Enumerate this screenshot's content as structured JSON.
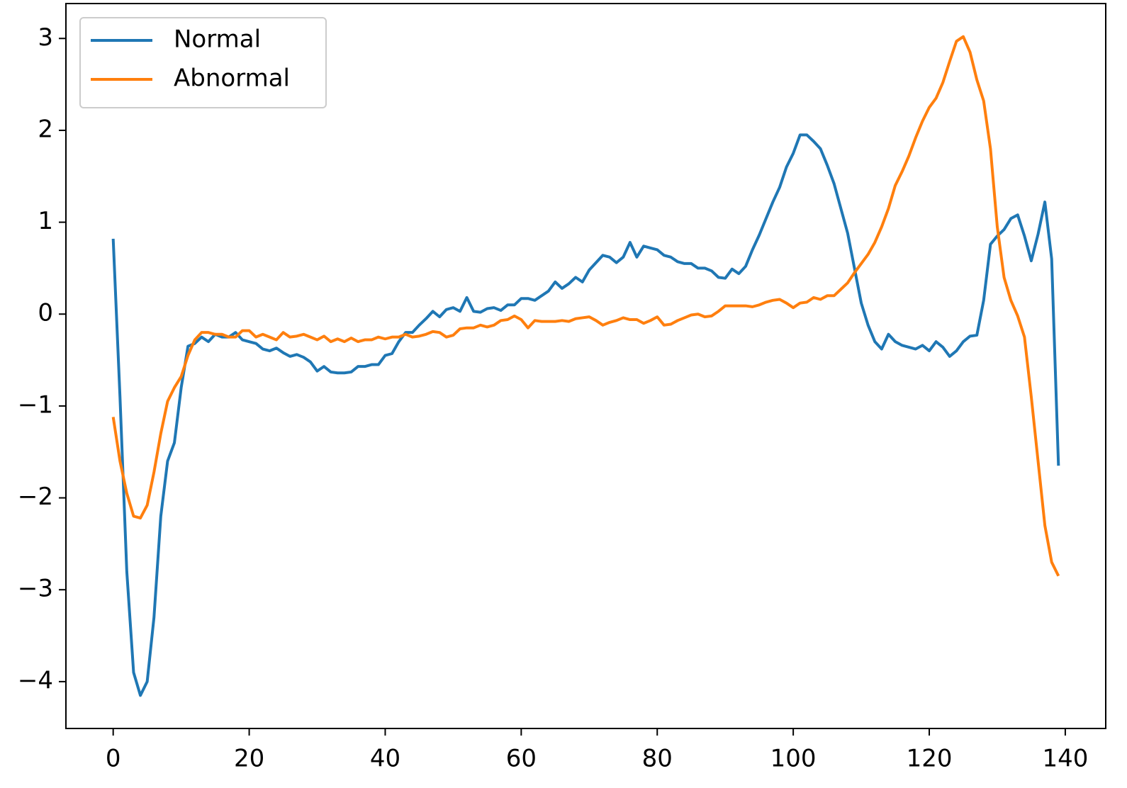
{
  "chart_data": {
    "type": "line",
    "x": [
      0,
      1,
      2,
      3,
      4,
      5,
      6,
      7,
      8,
      9,
      10,
      11,
      12,
      13,
      14,
      15,
      16,
      17,
      18,
      19,
      20,
      21,
      22,
      23,
      24,
      25,
      26,
      27,
      28,
      29,
      30,
      31,
      32,
      33,
      34,
      35,
      36,
      37,
      38,
      39,
      40,
      41,
      42,
      43,
      44,
      45,
      46,
      47,
      48,
      49,
      50,
      51,
      52,
      53,
      54,
      55,
      56,
      57,
      58,
      59,
      60,
      61,
      62,
      63,
      64,
      65,
      66,
      67,
      68,
      69,
      70,
      71,
      72,
      73,
      74,
      75,
      76,
      77,
      78,
      79,
      80,
      81,
      82,
      83,
      84,
      85,
      86,
      87,
      88,
      89,
      90,
      91,
      92,
      93,
      94,
      95,
      96,
      97,
      98,
      99,
      100,
      101,
      102,
      103,
      104,
      105,
      106,
      107,
      108,
      109,
      110,
      111,
      112,
      113,
      114,
      115,
      116,
      117,
      118,
      119,
      120,
      121,
      122,
      123,
      124,
      125,
      126,
      127,
      128,
      129,
      130,
      131,
      132,
      133,
      134,
      135,
      136,
      137,
      138,
      139
    ],
    "series": [
      {
        "name": "Normal",
        "color": "#1f77b4",
        "values": [
          0.82,
          -0.9,
          -2.8,
          -3.9,
          -4.15,
          -4.0,
          -3.3,
          -2.2,
          -1.6,
          -1.4,
          -0.8,
          -0.35,
          -0.32,
          -0.25,
          -0.3,
          -0.22,
          -0.25,
          -0.25,
          -0.2,
          -0.28,
          -0.3,
          -0.32,
          -0.38,
          -0.4,
          -0.37,
          -0.42,
          -0.46,
          -0.44,
          -0.47,
          -0.52,
          -0.62,
          -0.57,
          -0.63,
          -0.64,
          -0.64,
          -0.63,
          -0.57,
          -0.57,
          -0.55,
          -0.55,
          -0.45,
          -0.43,
          -0.3,
          -0.2,
          -0.2,
          -0.12,
          -0.05,
          0.03,
          -0.03,
          0.05,
          0.07,
          0.03,
          0.18,
          0.03,
          0.02,
          0.06,
          0.07,
          0.04,
          0.1,
          0.1,
          0.17,
          0.17,
          0.15,
          0.2,
          0.25,
          0.35,
          0.28,
          0.33,
          0.4,
          0.35,
          0.48,
          0.56,
          0.64,
          0.62,
          0.56,
          0.62,
          0.78,
          0.62,
          0.74,
          0.72,
          0.7,
          0.64,
          0.62,
          0.57,
          0.55,
          0.55,
          0.5,
          0.5,
          0.47,
          0.4,
          0.39,
          0.49,
          0.44,
          0.52,
          0.7,
          0.86,
          1.04,
          1.22,
          1.38,
          1.6,
          1.75,
          1.95,
          1.95,
          1.88,
          1.8,
          1.62,
          1.42,
          1.15,
          0.88,
          0.5,
          0.12,
          -0.12,
          -0.3,
          -0.38,
          -0.22,
          -0.3,
          -0.34,
          -0.36,
          -0.38,
          -0.34,
          -0.4,
          -0.3,
          -0.36,
          -0.46,
          -0.4,
          -0.3,
          -0.24,
          -0.23,
          0.15,
          0.76,
          0.85,
          0.92,
          1.04,
          1.08,
          0.85,
          0.58,
          0.87,
          1.22,
          0.6,
          -1.65
        ]
      },
      {
        "name": "Abnormal",
        "color": "#ff7f0e",
        "values": [
          -1.12,
          -1.6,
          -1.95,
          -2.2,
          -2.22,
          -2.08,
          -1.72,
          -1.3,
          -0.95,
          -0.8,
          -0.68,
          -0.45,
          -0.28,
          -0.2,
          -0.2,
          -0.22,
          -0.22,
          -0.25,
          -0.25,
          -0.18,
          -0.18,
          -0.25,
          -0.22,
          -0.25,
          -0.28,
          -0.2,
          -0.25,
          -0.24,
          -0.22,
          -0.25,
          -0.28,
          -0.24,
          -0.3,
          -0.27,
          -0.3,
          -0.26,
          -0.3,
          -0.28,
          -0.28,
          -0.25,
          -0.27,
          -0.25,
          -0.25,
          -0.22,
          -0.25,
          -0.24,
          -0.22,
          -0.19,
          -0.2,
          -0.25,
          -0.23,
          -0.16,
          -0.15,
          -0.15,
          -0.12,
          -0.14,
          -0.12,
          -0.07,
          -0.06,
          -0.02,
          -0.06,
          -0.15,
          -0.07,
          -0.08,
          -0.08,
          -0.08,
          -0.07,
          -0.08,
          -0.05,
          -0.04,
          -0.03,
          -0.07,
          -0.12,
          -0.09,
          -0.07,
          -0.04,
          -0.06,
          -0.06,
          -0.1,
          -0.07,
          -0.03,
          -0.12,
          -0.11,
          -0.07,
          -0.04,
          -0.01,
          0.0,
          -0.03,
          -0.02,
          0.03,
          0.09,
          0.09,
          0.09,
          0.09,
          0.08,
          0.1,
          0.13,
          0.15,
          0.16,
          0.12,
          0.07,
          0.12,
          0.13,
          0.18,
          0.16,
          0.2,
          0.2,
          0.27,
          0.34,
          0.45,
          0.55,
          0.65,
          0.78,
          0.95,
          1.15,
          1.4,
          1.55,
          1.72,
          1.92,
          2.1,
          2.25,
          2.35,
          2.52,
          2.75,
          2.97,
          3.02,
          2.85,
          2.55,
          2.32,
          1.8,
          0.95,
          0.4,
          0.15,
          -0.02,
          -0.25,
          -0.9,
          -1.6,
          -2.3,
          -2.7,
          -2.85
        ]
      }
    ],
    "xlim": [
      -6.95,
      145.95
    ],
    "ylim": [
      -4.51,
      3.38
    ],
    "xticks": [
      0,
      20,
      40,
      60,
      80,
      100,
      120,
      140
    ],
    "yticks": [
      {
        "value": -4,
        "label": "−4"
      },
      {
        "value": -3,
        "label": "−3"
      },
      {
        "value": -2,
        "label": "−2"
      },
      {
        "value": -1,
        "label": "−1"
      },
      0,
      1,
      2,
      3
    ],
    "legend": "upper left"
  }
}
